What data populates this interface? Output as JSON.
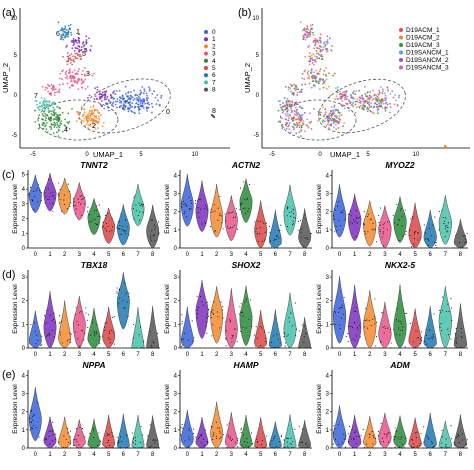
{
  "panels": [
    {
      "letter": "(a)",
      "x_label": "UMAP_1",
      "y_label": "UMAP_2",
      "x_ticks": [
        "-5",
        "0",
        "5",
        "10"
      ],
      "y_ticks": [
        "-5",
        "0",
        "5",
        "10"
      ],
      "cluster_labels": [
        "6",
        "1",
        "5",
        "3",
        "0",
        "2",
        "4",
        "7",
        "8"
      ],
      "legend": [
        "0",
        "1",
        "2",
        "3",
        "4",
        "5",
        "6",
        "7",
        "8"
      ]
    },
    {
      "letter": "(b)",
      "x_label": "UMAP_1",
      "y_label": "UMAP_2",
      "x_ticks": [
        "-5",
        "0",
        "5",
        "10"
      ],
      "y_ticks": [
        "-5",
        "0",
        "5",
        "10"
      ],
      "legend": [
        "D19ACM_1",
        "D19ACM_2",
        "D19ACM_3",
        "D19SANCM_1",
        "D19SANCM_2",
        "D19SANCM_3"
      ]
    }
  ],
  "colors": {
    "clusters": [
      "#3a63d8",
      "#7b2fbe",
      "#f28a2e",
      "#e8548a",
      "#2a8a3a",
      "#d94545",
      "#1f78b4",
      "#46c2a8",
      "#555555"
    ],
    "samples": [
      "#e05050",
      "#e08830",
      "#2a9a3a",
      "#5aa0e8",
      "#9c4fd0",
      "#d95fb0"
    ]
  },
  "row_letters": [
    "(c)",
    "(d)",
    "(e)"
  ],
  "y_axis_label": "Expression Level",
  "x_categories": [
    "0",
    "1",
    "2",
    "3",
    "4",
    "5",
    "6",
    "7",
    "8"
  ],
  "genes": [
    {
      "name": "TNNT2",
      "y_ticks": [
        "0",
        "1",
        "2",
        "3",
        "4",
        "5"
      ],
      "medians": [
        3.6,
        3.7,
        3.5,
        3.1,
        2.1,
        1.5,
        1.4,
        2.7,
        1.2
      ]
    },
    {
      "name": "ACTN2",
      "y_ticks": [
        "0",
        "1",
        "2",
        "3",
        "4"
      ],
      "medians": [
        2.4,
        2.1,
        1.8,
        1.6,
        2.6,
        1.0,
        0.4,
        1.9,
        0.6
      ]
    },
    {
      "name": "MYOZ2",
      "y_ticks": [
        "0",
        "1",
        "2",
        "3",
        "4"
      ],
      "medians": [
        1.8,
        1.6,
        1.3,
        1.1,
        1.5,
        0.8,
        0.6,
        1.4,
        0.3
      ]
    },
    {
      "name": "TBX18",
      "y_ticks": [
        "0",
        "1",
        "2",
        "3"
      ],
      "medians": [
        0.3,
        0.9,
        0.4,
        1.0,
        0.4,
        0.5,
        2.0,
        0.0,
        0.0
      ]
    },
    {
      "name": "SHOX2",
      "y_ticks": [
        "0",
        "1",
        "2",
        "3"
      ],
      "medians": [
        0.3,
        1.6,
        1.4,
        0.8,
        1.3,
        0.2,
        0.1,
        0.8,
        0.0
      ]
    },
    {
      "name": "NKX2-5",
      "y_ticks": [
        "0",
        "1",
        "2",
        "3"
      ],
      "medians": [
        1.4,
        0.9,
        1.0,
        0.6,
        0.9,
        0.3,
        0.2,
        1.2,
        0.1
      ]
    },
    {
      "name": "NPPA",
      "y_ticks": [
        "0",
        "1",
        "2",
        "3",
        "4"
      ],
      "medians": [
        1.6,
        0.4,
        0.3,
        0.3,
        0.2,
        0.2,
        0.1,
        0.1,
        0.1
      ]
    },
    {
      "name": "HAMP",
      "y_ticks": [
        "0",
        "1",
        "2",
        "3",
        "4"
      ],
      "medians": [
        0.5,
        0.3,
        0.8,
        0.3,
        0.2,
        0.1,
        0.1,
        0.1,
        0.1
      ]
    },
    {
      "name": "ADM",
      "y_ticks": [
        "0",
        "1",
        "2",
        "3",
        "4"
      ],
      "medians": [
        0.7,
        0.3,
        0.3,
        0.6,
        0.4,
        0.2,
        0.2,
        0.1,
        0.2
      ]
    }
  ]
}
